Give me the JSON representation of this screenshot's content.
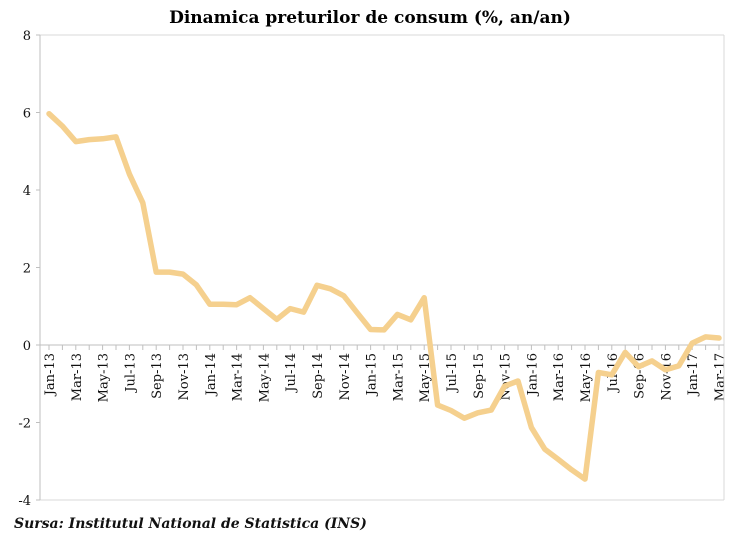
{
  "chart_data": {
    "type": "line",
    "title": "Dinamica preturilor de consum (%, an/an)",
    "source": "Sursa: Institutul National de Statistica (INS)",
    "xlabel": "",
    "ylabel": "",
    "ylim": [
      -4,
      8
    ],
    "yticks": [
      -4,
      -2,
      0,
      2,
      4,
      6,
      8
    ],
    "x": [
      "Jan-13",
      "Feb-13",
      "Mar-13",
      "Apr-13",
      "May-13",
      "Jun-13",
      "Jul-13",
      "Aug-13",
      "Sep-13",
      "Oct-13",
      "Nov-13",
      "Dec-13",
      "Jan-14",
      "Feb-14",
      "Mar-14",
      "Apr-14",
      "May-14",
      "Jun-14",
      "Jul-14",
      "Aug-14",
      "Sep-14",
      "Oct-14",
      "Nov-14",
      "Dec-14",
      "Jan-15",
      "Feb-15",
      "Mar-15",
      "Apr-15",
      "May-15",
      "Jun-15",
      "Jul-15",
      "Aug-15",
      "Sep-15",
      "Oct-15",
      "Nov-15",
      "Dec-15",
      "Jan-16",
      "Feb-16",
      "Mar-16",
      "Apr-16",
      "May-16",
      "Jun-16",
      "Jul-16",
      "Aug-16",
      "Sep-16",
      "Oct-16",
      "Nov-16",
      "Dec-16",
      "Jan-17",
      "Feb-17",
      "Mar-17"
    ],
    "xticks": [
      "Jan-13",
      "Mar-13",
      "May-13",
      "Jul-13",
      "Sep-13",
      "Nov-13",
      "Jan-14",
      "Mar-14",
      "May-14",
      "Jul-14",
      "Sep-14",
      "Nov-14",
      "Jan-15",
      "Mar-15",
      "May-15",
      "Jul-15",
      "Sep-15",
      "Nov-15",
      "Jan-16",
      "Mar-16",
      "May-16",
      "Jul-16",
      "Sep-16",
      "Nov-16",
      "Jan-17",
      "Mar-17"
    ],
    "series": [
      {
        "values": [
          5.97,
          5.65,
          5.25,
          5.3,
          5.32,
          5.37,
          4.41,
          3.67,
          1.88,
          1.88,
          1.83,
          1.55,
          1.05,
          1.05,
          1.04,
          1.22,
          0.94,
          0.66,
          0.94,
          0.85,
          1.54,
          1.45,
          1.27,
          0.83,
          0.4,
          0.39,
          0.79,
          0.65,
          1.22,
          -1.55,
          -1.69,
          -1.89,
          -1.75,
          -1.68,
          -1.06,
          -0.93,
          -2.13,
          -2.69,
          -2.95,
          -3.22,
          -3.46,
          -0.71,
          -0.77,
          -0.19,
          -0.56,
          -0.41,
          -0.64,
          -0.54,
          0.05,
          0.21,
          0.18
        ],
        "color": "#f5d08e"
      }
    ],
    "grid": false,
    "legend": "none"
  }
}
